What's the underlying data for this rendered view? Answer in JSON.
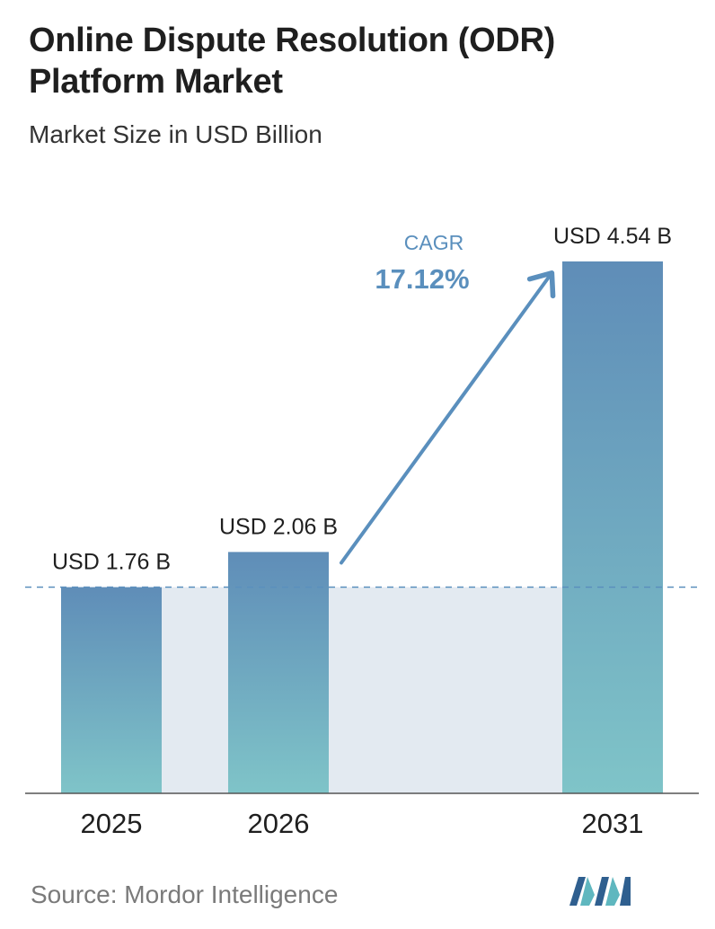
{
  "title": "Online Dispute Resolution (ODR) Platform Market",
  "subtitle": "Market Size in USD Billion",
  "source": "Source:  Mordor Intelligence",
  "colors": {
    "bar_top": "#5f8db8",
    "bar_bottom": "#7fc4c8",
    "band": "#e3eaf1",
    "arrow": "#5a8fbd",
    "cagr": "#5a8fbd",
    "dashed": "#5a8fbd",
    "axis": "#555555"
  },
  "chart_data": {
    "type": "bar",
    "categories": [
      "2025",
      "2026",
      "2031"
    ],
    "values": [
      1.76,
      2.06,
      4.54
    ],
    "value_labels": [
      "USD 1.76 B",
      "USD 2.06 B",
      "USD 4.54 B"
    ],
    "ylim": [
      0,
      4.54
    ],
    "grid": false,
    "annotation": {
      "label": "CAGR",
      "value": "17.12%"
    }
  }
}
